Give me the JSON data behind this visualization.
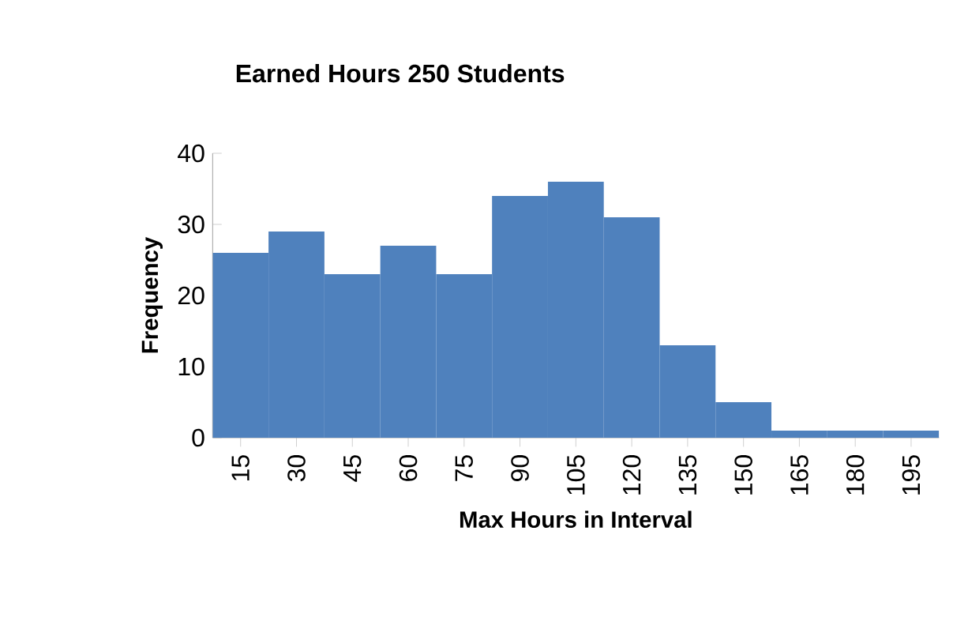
{
  "chart_data": {
    "type": "bar",
    "title": "Earned Hours 250 Students",
    "xlabel": "Max Hours in Interval",
    "ylabel": "Frequency",
    "categories": [
      "15",
      "30",
      "45",
      "60",
      "75",
      "90",
      "105",
      "120",
      "135",
      "150",
      "165",
      "180",
      "195"
    ],
    "values": [
      26,
      29,
      23,
      27,
      23,
      34,
      36,
      31,
      13,
      5,
      1,
      1,
      1
    ],
    "color": "#4f81bd",
    "ylim": [
      0,
      40
    ],
    "yticks": [
      0,
      10,
      20,
      30,
      40
    ]
  }
}
